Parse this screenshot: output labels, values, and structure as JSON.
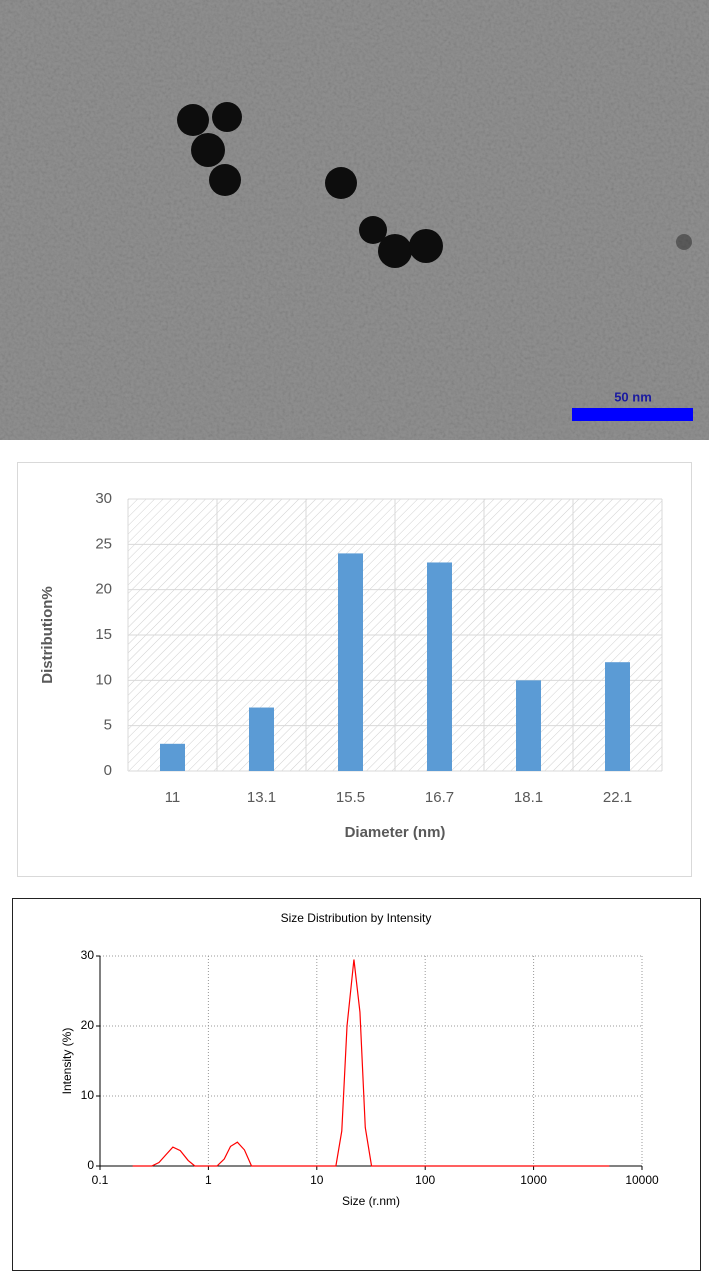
{
  "image": {
    "scale_label": "50 nm"
  },
  "chart_data": [
    {
      "type": "bar",
      "categories": [
        "11",
        "13.1",
        "15.5",
        "16.7",
        "18.1",
        "22.1"
      ],
      "values": [
        3,
        7,
        24,
        23,
        10,
        12
      ],
      "color": "#5b9bd5",
      "ylim": [
        0,
        30
      ],
      "yticks": [
        0,
        5,
        10,
        15,
        20,
        25,
        30
      ],
      "grid": true,
      "y_label": "Distribution%",
      "x_label": "Diameter (nm)"
    },
    {
      "type": "line",
      "title": "Size Distribution by Intensity",
      "x": [
        0.2,
        0.3,
        0.35,
        0.4,
        0.47,
        0.55,
        0.65,
        0.75,
        1.0,
        1.2,
        1.4,
        1.6,
        1.85,
        2.15,
        2.5,
        3,
        5,
        10,
        15,
        17,
        19,
        22,
        25,
        28,
        32,
        40,
        100,
        1000,
        5000
      ],
      "values": [
        0,
        0,
        0.5,
        1.5,
        2.7,
        2.2,
        0.8,
        0,
        0,
        0,
        1,
        2.8,
        3.4,
        2.3,
        0,
        0,
        0,
        0,
        0,
        5,
        20,
        29.5,
        22,
        5.5,
        0,
        0,
        0,
        0,
        0
      ],
      "color": "#ff0000",
      "xscale": "log",
      "xlim": [
        0.1,
        10000
      ],
      "xticks": [
        0.1,
        1,
        10,
        100,
        1000,
        10000
      ],
      "ylim": [
        0,
        30
      ],
      "yticks": [
        0,
        10,
        20,
        30
      ],
      "grid": true,
      "x_label": "Size (r.nm)",
      "y_label": "Intensity (%)"
    }
  ]
}
